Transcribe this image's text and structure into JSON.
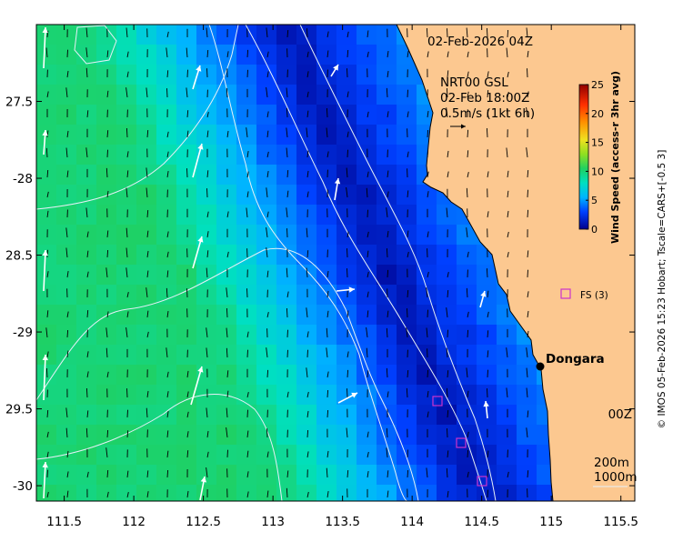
{
  "map": {
    "date_title": "02-Feb-2026 04Z",
    "product": "NRT00 GSL",
    "valid_time": "02-Feb 18:00Z",
    "scale_label": "0.5m/s (1kt 6h)",
    "stray_label": "00Z",
    "city_label": "Dongara",
    "station_label": "FS (3)",
    "depth_200": "200m",
    "depth_1000": "1000m",
    "credit": "© IMOS 05-Feb-2026 15:23 Hobart; Tscale=CARS+[-0.5 3]",
    "x_ticks": [
      {
        "lon": 111.5,
        "label": "111.5"
      },
      {
        "lon": 112,
        "label": "112"
      },
      {
        "lon": 112.5,
        "label": "112.5"
      },
      {
        "lon": 113,
        "label": "113"
      },
      {
        "lon": 113.5,
        "label": "113.5"
      },
      {
        "lon": 114,
        "label": "114"
      },
      {
        "lon": 114.5,
        "label": "114.5"
      },
      {
        "lon": 115,
        "label": "115"
      },
      {
        "lon": 115.5,
        "label": "115.5"
      }
    ],
    "y_ticks": [
      {
        "lat": -27.5,
        "label": "27.5"
      },
      {
        "lat": -28,
        "label": "-28"
      },
      {
        "lat": -28.5,
        "label": "28.5"
      },
      {
        "lat": -29,
        "label": "-29"
      },
      {
        "lat": -29.5,
        "label": "29.5"
      },
      {
        "lat": -30,
        "label": "-30"
      }
    ],
    "lon_range": [
      111.3,
      115.6
    ],
    "lat_range": [
      -27.0,
      -30.1
    ],
    "colors": {
      "land": "#fcc890",
      "mooring": "#cc33cc",
      "contour": "#e6f0f8"
    }
  },
  "colorbar": {
    "label": "Wind Speed (access-r 3hr avg)",
    "range": [
      0,
      25
    ],
    "ticks": [
      "0",
      "5",
      "10",
      "15",
      "20",
      "25"
    ]
  },
  "icons": [
    "north-arrow-icon",
    "mooring-square-icon",
    "city-dot-icon"
  ]
}
